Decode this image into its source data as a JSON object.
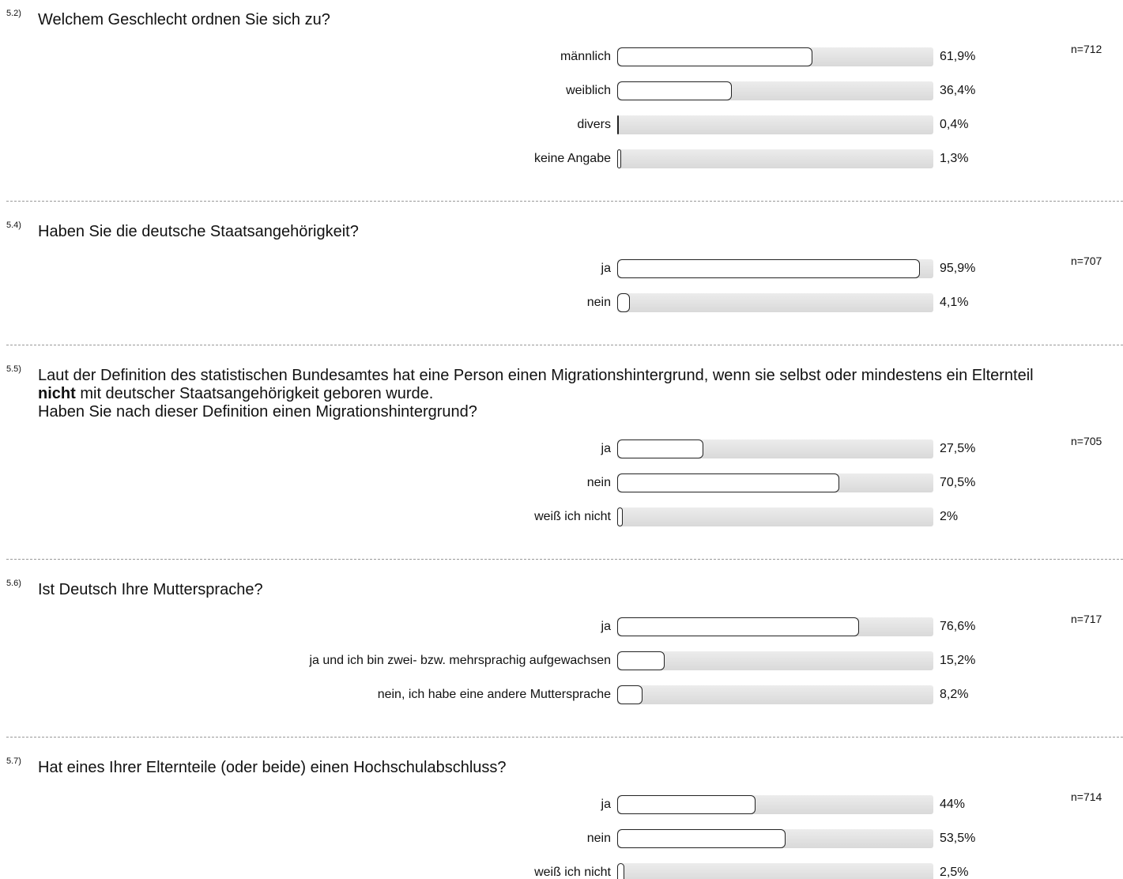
{
  "chart_data": [
    {
      "type": "bar",
      "number": "5.2)",
      "title": "Welchem Geschlecht ordnen Sie sich zu?",
      "n": "n=712",
      "categories": [
        "männlich",
        "weiblich",
        "divers",
        "keine Angabe"
      ],
      "values": [
        61.9,
        36.4,
        0.4,
        1.3
      ],
      "value_labels": [
        "61,9%",
        "36,4%",
        "0,4%",
        "1,3%"
      ],
      "xlim": [
        0,
        100
      ]
    },
    {
      "type": "bar",
      "number": "5.4)",
      "title": "Haben Sie die deutsche Staatsangehörigkeit?",
      "n": "n=707",
      "categories": [
        "ja",
        "nein"
      ],
      "values": [
        95.9,
        4.1
      ],
      "value_labels": [
        "95,9%",
        "4,1%"
      ],
      "xlim": [
        0,
        100
      ]
    },
    {
      "type": "bar",
      "number": "5.5)",
      "title": "Laut der Definition des statistischen Bundesamtes hat eine Person einen Migrationshintergrund, wenn sie selbst oder mindestens ein Elternteil",
      "emphasis": "nicht",
      "title_rest": "mit deutscher Staatsangehörigkeit geboren wurde.",
      "subtitle": "Haben Sie nach dieser Definition einen Migrationshintergrund?",
      "n": "n=705",
      "categories": [
        "ja",
        "nein",
        "weiß ich nicht"
      ],
      "values": [
        27.5,
        70.5,
        2
      ],
      "value_labels": [
        "27,5%",
        "70,5%",
        "2%"
      ],
      "xlim": [
        0,
        100
      ]
    },
    {
      "type": "bar",
      "number": "5.6)",
      "title": "Ist Deutsch Ihre Muttersprache?",
      "n": "n=717",
      "categories": [
        "ja",
        "ja und ich bin zwei- bzw. mehrsprachig aufgewachsen",
        "nein, ich habe eine andere Muttersprache"
      ],
      "values": [
        76.6,
        15.2,
        8.2
      ],
      "value_labels": [
        "76,6%",
        "15,2%",
        "8,2%"
      ],
      "xlim": [
        0,
        100
      ]
    },
    {
      "type": "bar",
      "number": "5.7)",
      "title": "Hat eines Ihrer Elternteile (oder beide) einen Hochschulabschluss?",
      "n": "n=714",
      "categories": [
        "ja",
        "nein",
        "weiß ich nicht"
      ],
      "values": [
        44,
        53.5,
        2.5
      ],
      "value_labels": [
        "44%",
        "53,5%",
        "2,5%"
      ],
      "xlim": [
        0,
        100
      ]
    }
  ]
}
